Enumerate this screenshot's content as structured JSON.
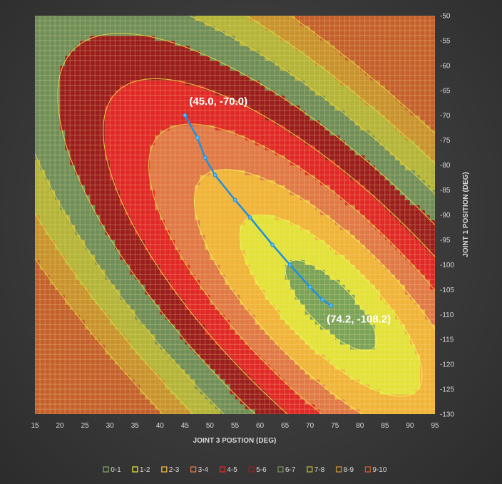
{
  "chart_data": {
    "type": "contour",
    "xlabel": "JOINT 3 POSTION (DEG)",
    "ylabel": "JOINT 1 POSITION (DEG)",
    "xlim": [
      15,
      95
    ],
    "ylim": [
      -130,
      -50
    ],
    "x_ticks": [
      15,
      20,
      25,
      30,
      35,
      40,
      45,
      50,
      55,
      60,
      65,
      70,
      75,
      80,
      85,
      90,
      95
    ],
    "y_ticks": [
      -50,
      -55,
      -60,
      -65,
      -70,
      -75,
      -80,
      -85,
      -90,
      -95,
      -100,
      -105,
      -110,
      -115,
      -120,
      -125,
      -130
    ],
    "y_axis_position": "right",
    "grid": true,
    "legend_position": "bottom",
    "bands": [
      {
        "label": "0-1",
        "color": "#7aa35a"
      },
      {
        "label": "1-2",
        "color": "#e2e23a"
      },
      {
        "label": "2-3",
        "color": "#f0b43a"
      },
      {
        "label": "3-4",
        "color": "#e07848"
      },
      {
        "label": "4-5",
        "color": "#e02828"
      },
      {
        "label": "5-6",
        "color": "#9a1e1e"
      },
      {
        "label": "6-7",
        "color": "#6f8e5a"
      },
      {
        "label": "7-8",
        "color": "#b3b43a"
      },
      {
        "label": "8-9",
        "color": "#c8922e"
      },
      {
        "label": "9-10",
        "color": "#c4602e"
      }
    ],
    "path": {
      "points": [
        [
          45.0,
          -70.0
        ],
        [
          47.5,
          -74.5
        ],
        [
          49.0,
          -78.5
        ],
        [
          51.0,
          -82.0
        ],
        [
          55.0,
          -87.0
        ],
        [
          58.0,
          -90.5
        ],
        [
          62.5,
          -96.0
        ],
        [
          66.0,
          -100.0
        ],
        [
          70.0,
          -104.5
        ],
        [
          72.5,
          -107.0
        ],
        [
          74.2,
          -108.2
        ]
      ],
      "color": "#1e90e0"
    },
    "annotations": [
      {
        "text": "(45.0, -70.0)",
        "x": 45.0,
        "y": -70.0
      },
      {
        "text": "(74.2, -108.2)",
        "x": 74.2,
        "y": -108.2
      }
    ]
  }
}
